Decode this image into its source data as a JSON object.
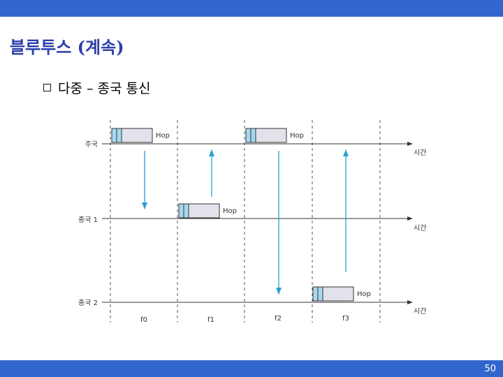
{
  "slide": {
    "title": "블루투스 (계속)",
    "bullet": "다중 – 종국 통신",
    "page_number": "50"
  },
  "diagram": {
    "hop_label": "Hop",
    "time_label": "시간",
    "rows": [
      {
        "label": "주국"
      },
      {
        "label": "종국 1"
      },
      {
        "label": "종국 2"
      }
    ],
    "slots": [
      "f0",
      "f1",
      "f2",
      "f3"
    ],
    "packets": [
      {
        "row": 0,
        "slot": 0,
        "label": "Hop"
      },
      {
        "row": 1,
        "slot": 1,
        "label": "Hop"
      },
      {
        "row": 0,
        "slot": 2,
        "label": "Hop"
      },
      {
        "row": 2,
        "slot": 3,
        "label": "Hop"
      }
    ],
    "colors": {
      "bar": "#3366cc",
      "title": "#2a3fa8",
      "arrow": "#2a9fd6",
      "packet_fill": "#e2e2ea",
      "packet_header": "#a8d8f0"
    }
  }
}
